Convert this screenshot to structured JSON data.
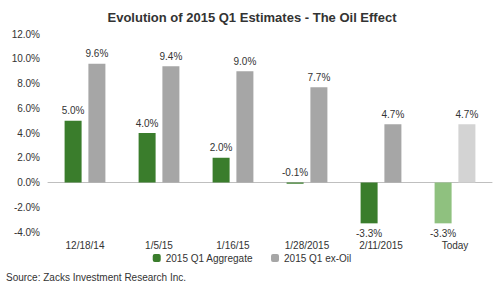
{
  "chart_data": {
    "type": "bar",
    "title": "Evolution of 2015 Q1 Estimates - The Oil Effect",
    "categories": [
      "12/18/14",
      "1/5/15",
      "1/16/15",
      "1/28/2015",
      "2/11/2015",
      "Today"
    ],
    "series": [
      {
        "name": "2015 Q1 Aggregate",
        "color": "#3a7d2c",
        "colors": [
          "#3a7d2c",
          "#3a7d2c",
          "#3a7d2c",
          "#3a7d2c",
          "#3a7d2c",
          "#8fc17f"
        ],
        "values": [
          5.0,
          4.0,
          2.0,
          -0.1,
          -3.3,
          -3.3
        ],
        "value_labels": [
          "5.0%",
          "4.0%",
          "2.0%",
          "-0.1%",
          "-3.3%",
          "-3.3%"
        ]
      },
      {
        "name": "2015 Q1 ex-Oil",
        "color": "#a6a6a6",
        "colors": [
          "#a6a6a6",
          "#a6a6a6",
          "#a6a6a6",
          "#a6a6a6",
          "#a6a6a6",
          "#d3d3d3"
        ],
        "values": [
          9.6,
          9.4,
          9.0,
          7.7,
          4.7,
          4.7
        ],
        "value_labels": [
          "9.6%",
          "9.4%",
          "9.0%",
          "7.7%",
          "4.7%",
          "4.7%"
        ]
      }
    ],
    "ylim": [
      -4,
      12
    ],
    "yticks": [
      {
        "value": -4,
        "label": "-4.0%"
      },
      {
        "value": -2,
        "label": "-2.0%"
      },
      {
        "value": 0,
        "label": "0.0%"
      },
      {
        "value": 2,
        "label": "2.0%"
      },
      {
        "value": 4,
        "label": "4.0%"
      },
      {
        "value": 6,
        "label": "6.0%"
      },
      {
        "value": 8,
        "label": "8.0%"
      },
      {
        "value": 10,
        "label": "10.0%"
      },
      {
        "value": 12,
        "label": "12.0%"
      }
    ],
    "grid": false,
    "legend": "bottom",
    "data_labels": true,
    "annotations": [
      "Source: Zacks Investment Research Inc."
    ]
  }
}
